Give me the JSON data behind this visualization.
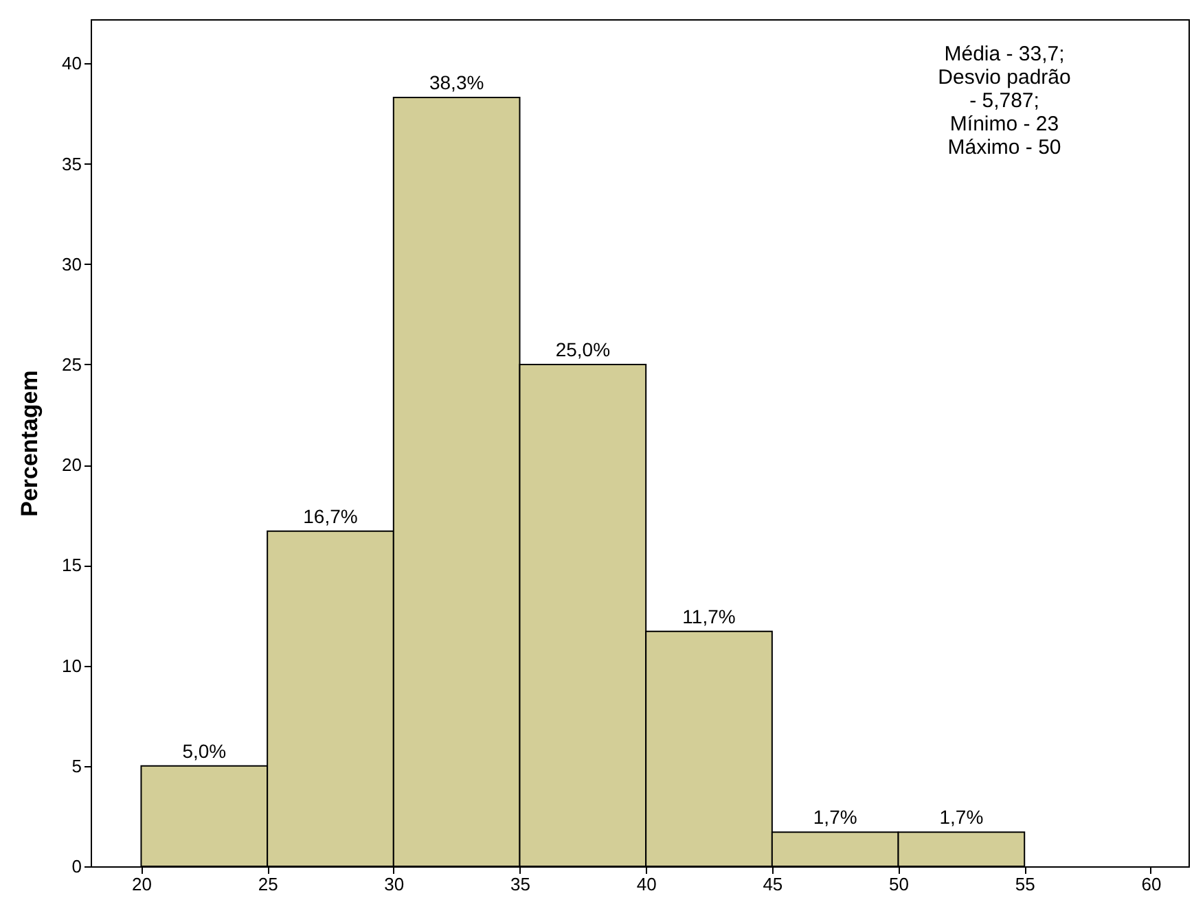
{
  "chart_data": {
    "type": "histogram",
    "ylabel": "Percentagem",
    "bins": [
      20,
      25,
      30,
      35,
      40,
      45,
      50,
      55
    ],
    "values": [
      5.0,
      16.7,
      38.3,
      25.0,
      11.7,
      1.7,
      1.7
    ],
    "value_labels": [
      "5,0%",
      "16,7%",
      "38,3%",
      "25,0%",
      "11,7%",
      "1,7%",
      "1,7%"
    ],
    "color": "#d3ce97",
    "xlim": [
      18,
      61.5
    ],
    "xticks": [
      20,
      25,
      30,
      35,
      40,
      45,
      50,
      55,
      60
    ],
    "ylim": [
      0,
      42.2
    ],
    "yticks": [
      0,
      5,
      10,
      15,
      20,
      25,
      30,
      35,
      40
    ],
    "grid": false,
    "annotations": [
      "Média - 33,7;\nDesvio padrão\n- 5,787;\nMínimo -  23\nMáximo - 50"
    ]
  }
}
